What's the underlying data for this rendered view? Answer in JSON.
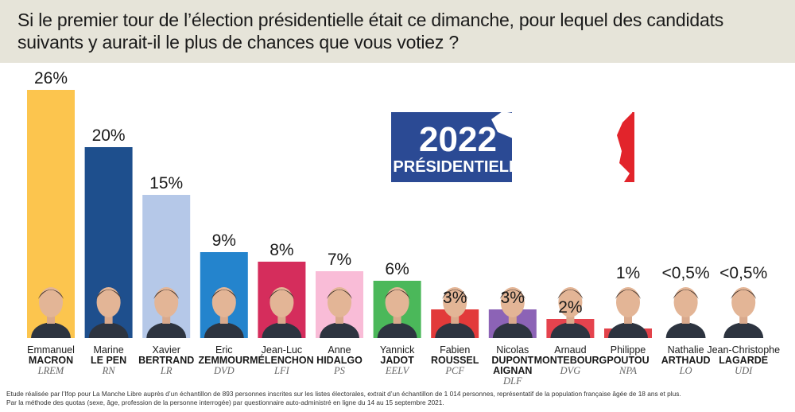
{
  "title": "Si  le premier tour de l’élection présidentielle était ce dimanche, pour lequel des candidats suivants y aurait-il le plus de chances que vous votiez ?",
  "badge": {
    "year": "2022",
    "subtitle": "PRÉSIDENTIELLE",
    "colors": {
      "blue": "#2b4a94",
      "red": "#e2242b",
      "white": "#ffffff"
    }
  },
  "chart_data": {
    "type": "bar",
    "title": "Si  le premier tour de l’élection présidentielle était ce dimanche, pour lequel des candidats suivants y aurait-il le plus de chances que vous votiez ?",
    "xlabel": "",
    "ylabel": "",
    "ylim": [
      0,
      26
    ],
    "categories": [
      "Emmanuel MACRON",
      "Marine LE PEN",
      "Xavier BERTRAND",
      "Eric ZEMMOUR",
      "Jean-Luc MÉLENCHON",
      "Anne HIDALGO",
      "Yannick JADOT",
      "Fabien ROUSSEL",
      "Nicolas DUPONT AIGNAN",
      "Arnaud MONTEBOURG",
      "Philippe POUTOU",
      "Nathalie ARTHAUD",
      "Jean-Christophe LAGARDE"
    ],
    "values": [
      26,
      20,
      15,
      9,
      8,
      7,
      6,
      3,
      3,
      2,
      1,
      0.5,
      0.5
    ],
    "labels": [
      "26%",
      "20%",
      "15%",
      "9%",
      "8%",
      "7%",
      "6%",
      "3%",
      "3%",
      "2%",
      "1%",
      "<0,5%",
      "<0,5%"
    ],
    "candidates": [
      {
        "first": "Emmanuel",
        "last": [
          "MACRON"
        ],
        "party": "LREM",
        "label": "26%",
        "value": 26,
        "color": "#fcc54e"
      },
      {
        "first": "Marine",
        "last": [
          "LE PEN"
        ],
        "party": "RN",
        "label": "20%",
        "value": 20,
        "color": "#1e4f8d"
      },
      {
        "first": "Xavier",
        "last": [
          "BERTRAND"
        ],
        "party": "LR",
        "label": "15%",
        "value": 15,
        "color": "#b5c8e8"
      },
      {
        "first": "Eric",
        "last": [
          "ZEMMOUR"
        ],
        "party": "DVD",
        "label": "9%",
        "value": 9,
        "color": "#2484cd"
      },
      {
        "first": "Jean-Luc",
        "last": [
          "MÉLENCHON"
        ],
        "party": "LFI",
        "label": "8%",
        "value": 8,
        "color": "#d52d5c"
      },
      {
        "first": "Anne",
        "last": [
          "HIDALGO"
        ],
        "party": "PS",
        "label": "7%",
        "value": 7,
        "color": "#f9bcd7"
      },
      {
        "first": "Yannick",
        "last": [
          "JADOT"
        ],
        "party": "EELV",
        "label": "6%",
        "value": 6,
        "color": "#4bb85a"
      },
      {
        "first": "Fabien",
        "last": [
          "ROUSSEL"
        ],
        "party": "PCF",
        "label": "3%",
        "value": 3,
        "color": "#e23a3a"
      },
      {
        "first": "Nicolas",
        "last": [
          "DUPONT",
          "AIGNAN"
        ],
        "party": "DLF",
        "label": "3%",
        "value": 3,
        "color": "#8c63b6"
      },
      {
        "first": "Arnaud",
        "last": [
          "MONTEBOURG"
        ],
        "party": "DVG",
        "label": "2%",
        "value": 2,
        "color": "#e5434e"
      },
      {
        "first": "Philippe",
        "last": [
          "POUTOU"
        ],
        "party": "NPA",
        "label": "1%",
        "value": 1,
        "color": "#e2424a"
      },
      {
        "first": "Nathalie",
        "last": [
          "ARTHAUD"
        ],
        "party": "LO",
        "label": "<0,5%",
        "value": 0.5,
        "color": "#cf2f2f"
      },
      {
        "first": "Jean-Christophe",
        "last": [
          "LAGARDE"
        ],
        "party": "UDI",
        "label": "<0,5%",
        "value": 0.5,
        "color": "#2f7fd0"
      }
    ]
  },
  "footnote": [
    "Etude réalisée par l’Ifop pour La Manche Libre auprès d’un échantillon de 893 personnes inscrites sur les listes électorales, extrait d’un échantillon de 1 014 personnes, représentatif de la population française âgée de 18 ans et plus.",
    "Par la méthode des quotas (sexe, âge, profession de la personne interrogée) par questionnaire auto-administré en ligne du 14 au 15 septembre 2021."
  ]
}
